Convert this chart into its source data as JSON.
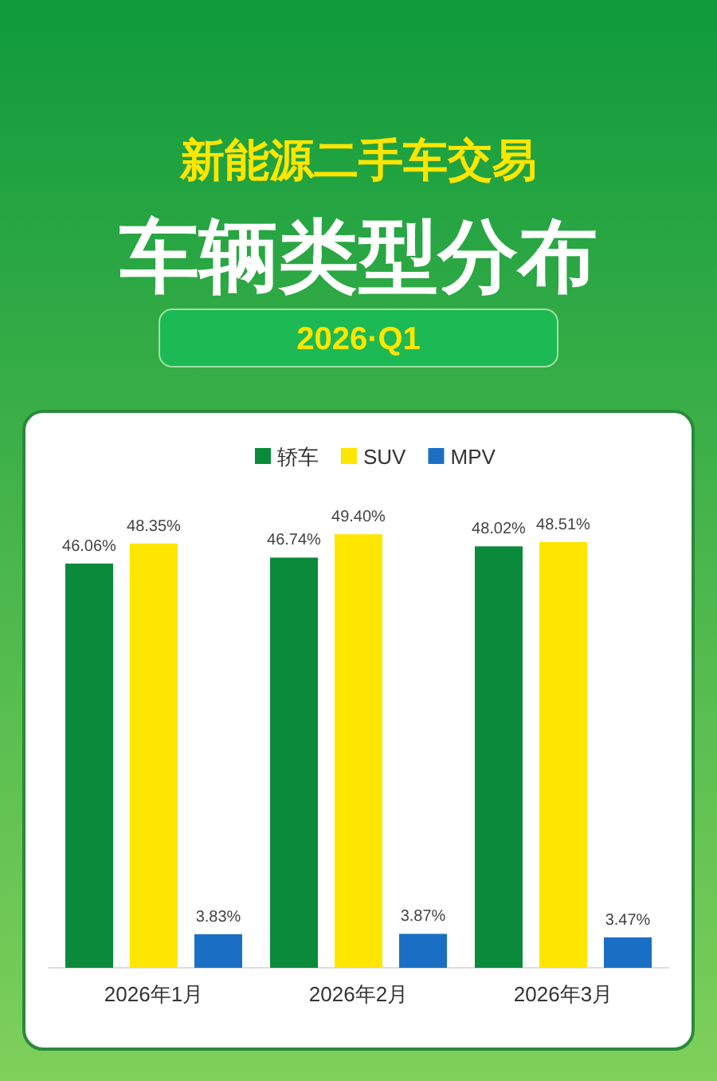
{
  "chart_data": {
    "type": "bar",
    "title": "新能源二手车交易",
    "subtitle": "车辆类型分布",
    "annotations": [
      "2026·Q1"
    ],
    "categories": [
      "2026年1月",
      "2026年2月",
      "2026年3月"
    ],
    "series": [
      {
        "name": "轿车",
        "color": "#0a8a3a",
        "values": [
          46.06,
          46.74,
          48.02
        ],
        "value_labels": [
          "46.06%",
          "46.74%",
          "48.02%"
        ]
      },
      {
        "name": "SUV",
        "color": "#ffe600",
        "values": [
          48.35,
          49.4,
          48.51
        ],
        "value_labels": [
          "48.35%",
          "49.40%",
          "48.51%"
        ]
      },
      {
        "name": "MPV",
        "color": "#1a6fc4",
        "values": [
          3.83,
          3.87,
          3.47
        ],
        "value_labels": [
          "3.83%",
          "3.87%",
          "3.47%"
        ]
      }
    ],
    "legend": "top"
  }
}
